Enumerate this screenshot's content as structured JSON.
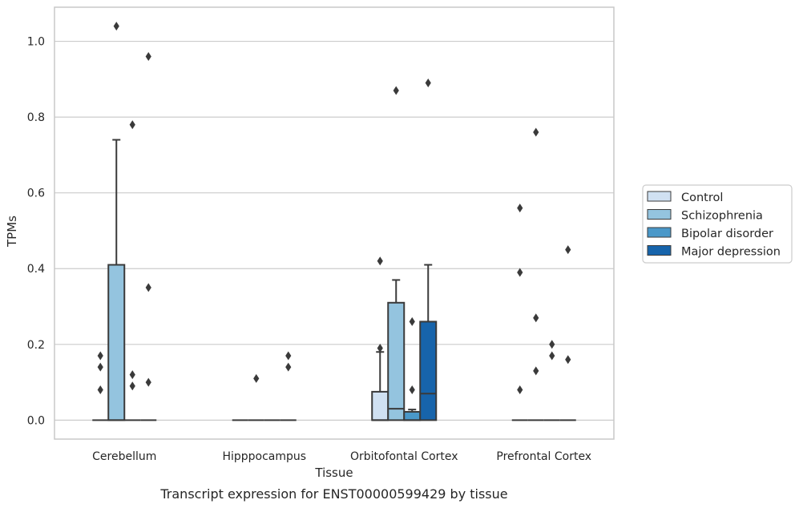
{
  "caption": "Transcript expression for ENST00000599429 by tissue",
  "chart_data": {
    "type": "box",
    "xlabel": "Tissue",
    "ylabel": "TPMs",
    "ylim": [
      -0.05,
      1.09
    ],
    "yticks": [
      0.0,
      0.2,
      0.4,
      0.6,
      0.8,
      1.0
    ],
    "ytick_labels": [
      "0.0",
      "0.2",
      "0.4",
      "0.6",
      "0.8",
      "1.0"
    ],
    "grid": "horizontal",
    "legend_position": "right",
    "categories": [
      "Cerebellum",
      "Hipppocampus",
      "Orbitofontal Cortex",
      "Prefrontal Cortex"
    ],
    "series": [
      {
        "name": "Control",
        "color": "#d0e1f2",
        "boxes": [
          {
            "q1": 0.0,
            "median": 0.0,
            "q3": 0.0,
            "whislo": 0.0,
            "whishi": 0.0,
            "fliers": [
              0.17,
              0.14,
              0.08
            ]
          },
          {
            "q1": 0.0,
            "median": 0.0,
            "q3": 0.0,
            "whislo": 0.0,
            "whishi": 0.0,
            "fliers": []
          },
          {
            "q1": 0.0,
            "median": 0.0,
            "q3": 0.075,
            "whislo": 0.0,
            "whishi": 0.18,
            "fliers": [
              0.42,
              0.19
            ]
          },
          {
            "q1": 0.0,
            "median": 0.0,
            "q3": 0.0,
            "whislo": 0.0,
            "whishi": 0.0,
            "fliers": [
              0.56,
              0.39,
              0.08
            ]
          }
        ]
      },
      {
        "name": "Schizophrenia",
        "color": "#94c4df",
        "boxes": [
          {
            "q1": 0.0,
            "median": 0.0,
            "q3": 0.41,
            "whislo": 0.0,
            "whishi": 0.74,
            "fliers": [
              1.04
            ]
          },
          {
            "q1": 0.0,
            "median": 0.0,
            "q3": 0.0,
            "whislo": 0.0,
            "whishi": 0.0,
            "fliers": [
              0.11
            ]
          },
          {
            "q1": 0.0,
            "median": 0.03,
            "q3": 0.31,
            "whislo": 0.0,
            "whishi": 0.37,
            "fliers": [
              0.87
            ]
          },
          {
            "q1": 0.0,
            "median": 0.0,
            "q3": 0.0,
            "whislo": 0.0,
            "whishi": 0.0,
            "fliers": [
              0.76,
              0.27,
              0.13
            ]
          }
        ]
      },
      {
        "name": "Bipolar disorder",
        "color": "#4a98c9",
        "boxes": [
          {
            "q1": 0.0,
            "median": 0.0,
            "q3": 0.0,
            "whislo": 0.0,
            "whishi": 0.0,
            "fliers": [
              0.78,
              0.12,
              0.09
            ]
          },
          {
            "q1": 0.0,
            "median": 0.0,
            "q3": 0.0,
            "whislo": 0.0,
            "whishi": 0.0,
            "fliers": []
          },
          {
            "q1": 0.0,
            "median": 0.0,
            "q3": 0.022,
            "whislo": 0.0,
            "whishi": 0.028,
            "fliers": [
              0.26,
              0.08
            ]
          },
          {
            "q1": 0.0,
            "median": 0.0,
            "q3": 0.0,
            "whislo": 0.0,
            "whishi": 0.0,
            "fliers": [
              0.2,
              0.17
            ]
          }
        ]
      },
      {
        "name": "Major depression",
        "color": "#1764ab",
        "boxes": [
          {
            "q1": 0.0,
            "median": 0.0,
            "q3": 0.0,
            "whislo": 0.0,
            "whishi": 0.0,
            "fliers": [
              0.96,
              0.35,
              0.1
            ]
          },
          {
            "q1": 0.0,
            "median": 0.0,
            "q3": 0.0,
            "whislo": 0.0,
            "whishi": 0.0,
            "fliers": [
              0.17,
              0.14
            ]
          },
          {
            "q1": 0.0,
            "median": 0.07,
            "q3": 0.26,
            "whislo": 0.0,
            "whishi": 0.41,
            "fliers": [
              0.89
            ]
          },
          {
            "q1": 0.0,
            "median": 0.0,
            "q3": 0.0,
            "whislo": 0.0,
            "whishi": 0.0,
            "fliers": [
              0.45,
              0.16
            ]
          }
        ]
      }
    ],
    "line_color": "#3a3a3a",
    "grid_color": "#cccccc",
    "frame_color": "#c8c8c8"
  }
}
